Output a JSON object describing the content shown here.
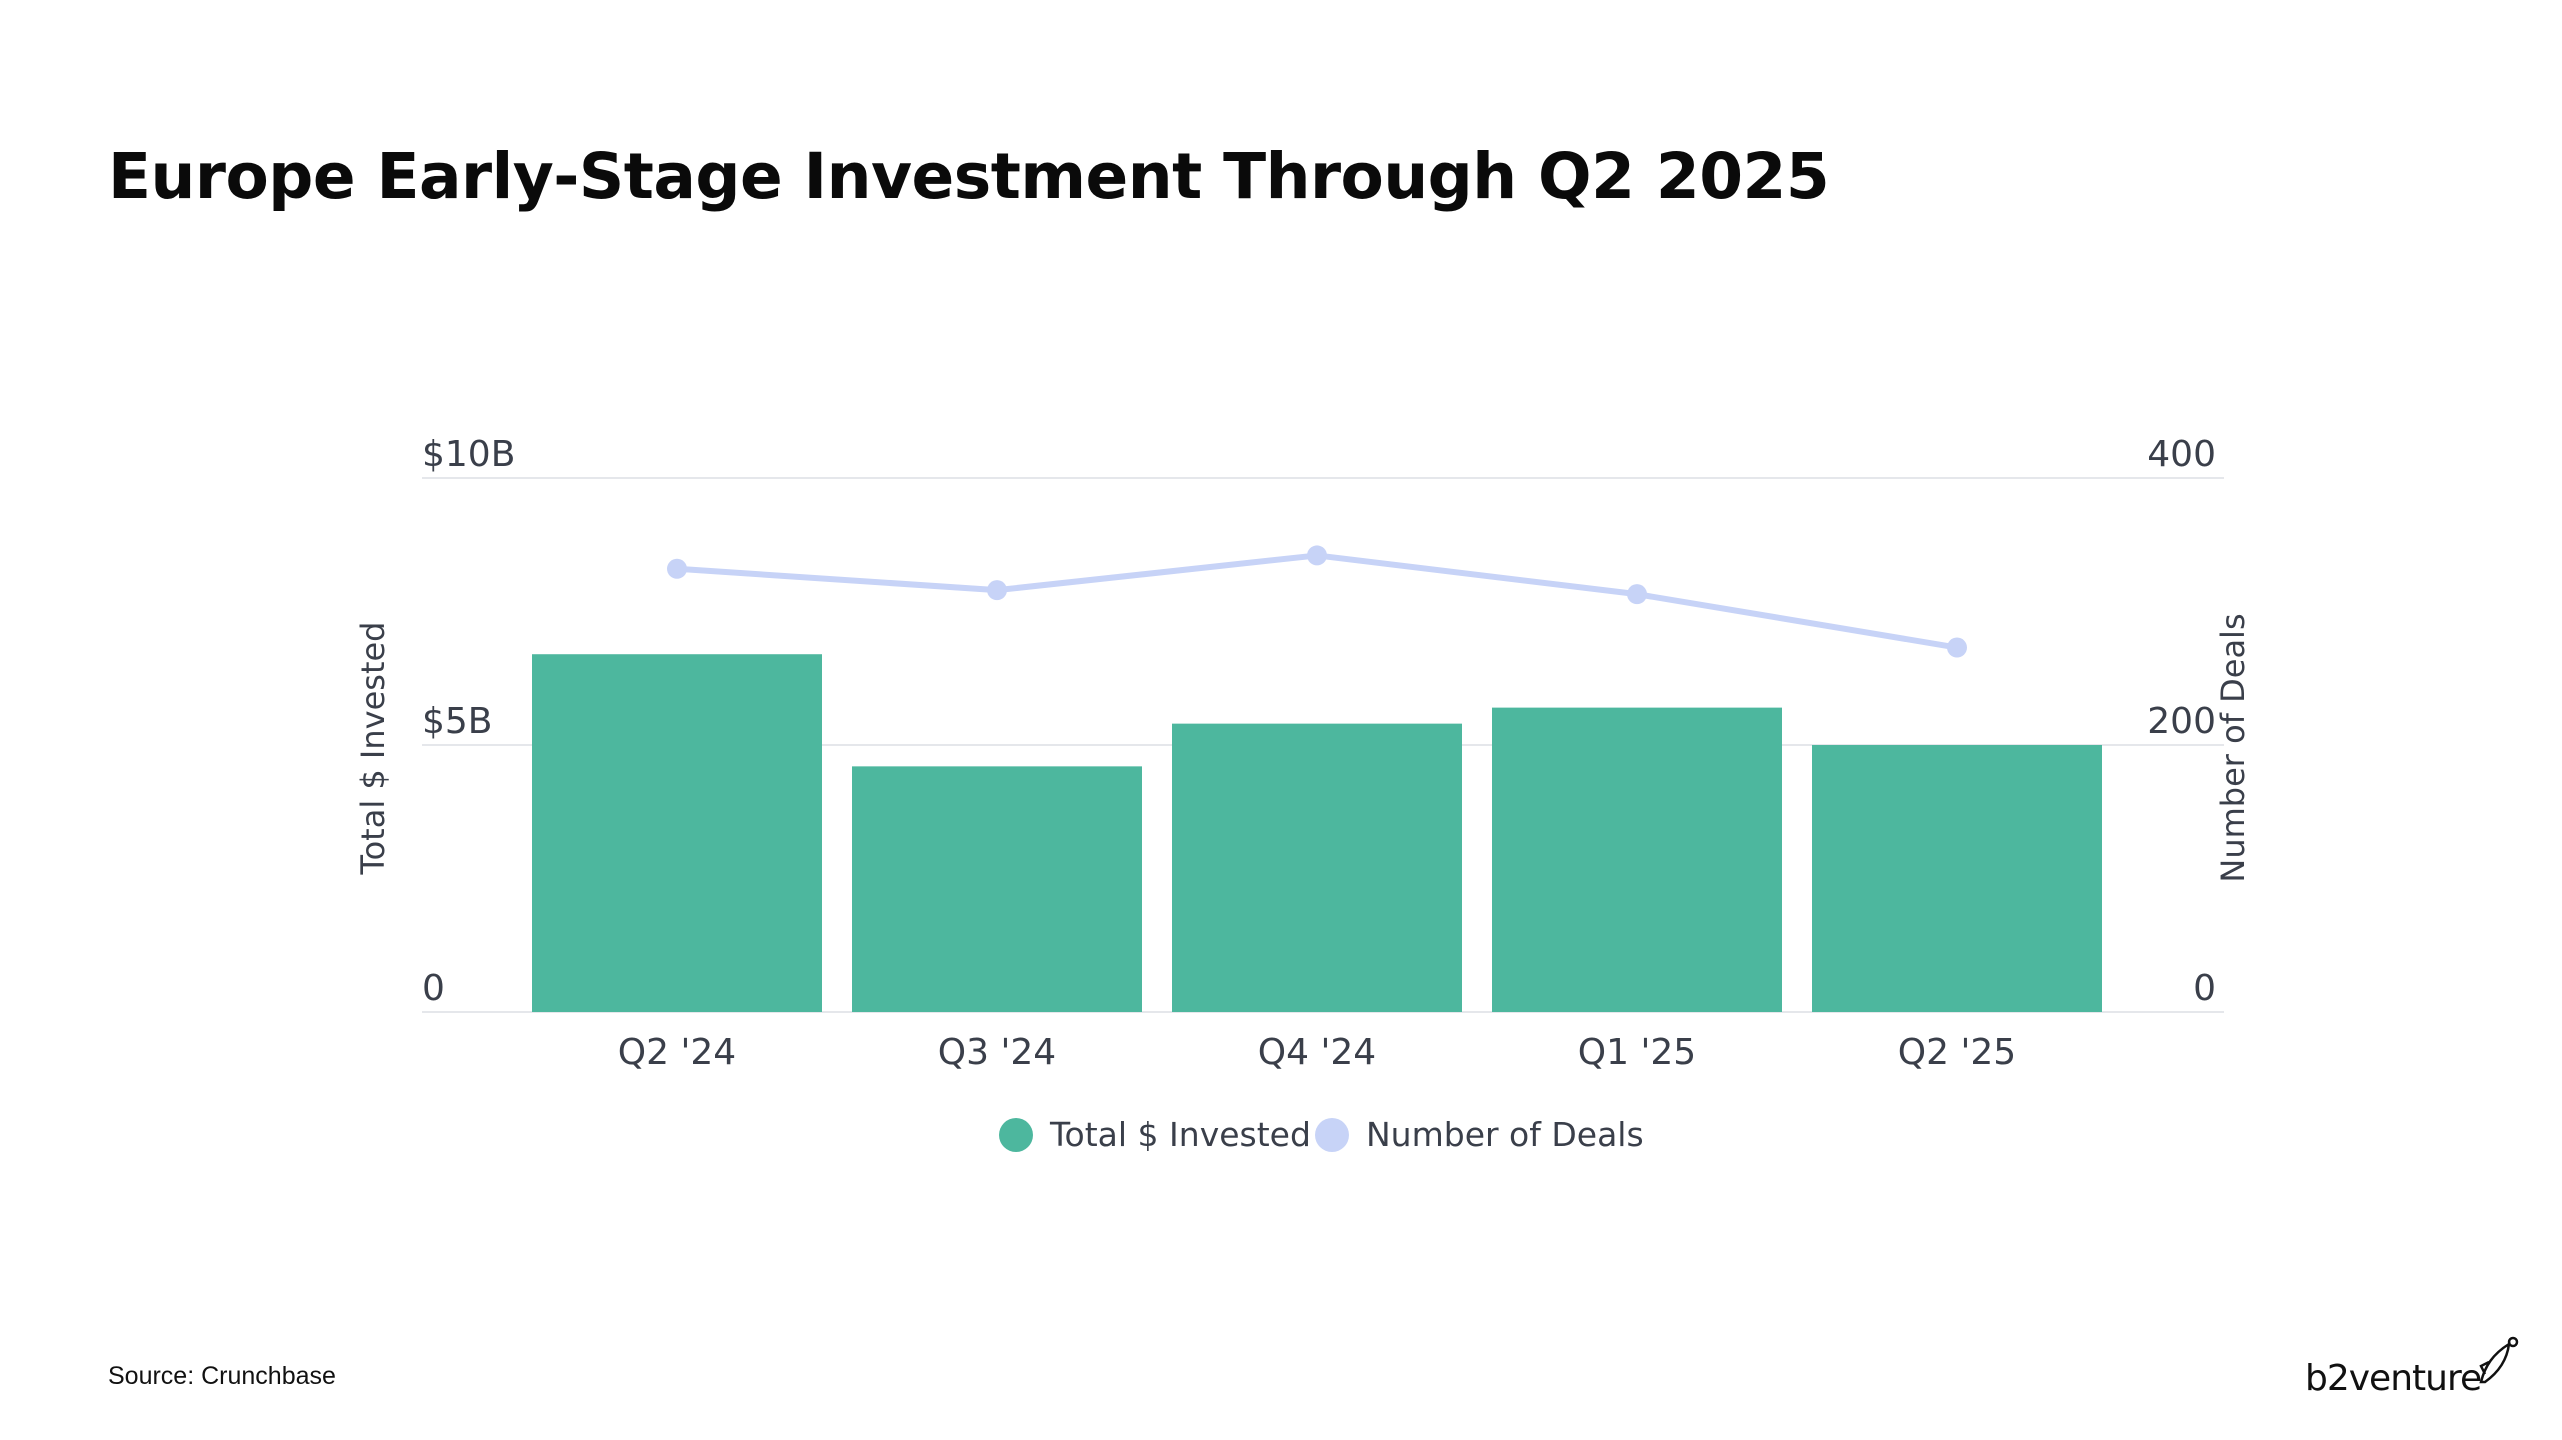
{
  "page": {
    "title": "Europe Early-Stage Investment Through Q2 2025",
    "source": "Source: Crunchbase",
    "brand": "b2venture"
  },
  "colors": {
    "bar": "#4db79e",
    "line": "#c7d3f7",
    "grid": "#e5e7eb",
    "text": "#3a3f4a"
  },
  "chart_data": {
    "type": "bar",
    "categories": [
      "Q2 '24",
      "Q3 '24",
      "Q4 '24",
      "Q1 '25",
      "Q2 '25"
    ],
    "series": [
      {
        "name": "Total $ Invested",
        "type": "bar",
        "axis": "left",
        "values": [
          6.7,
          4.6,
          5.4,
          5.7,
          5.0
        ]
      },
      {
        "name": "Number of Deals",
        "type": "line",
        "axis": "right",
        "values": [
          332,
          316,
          342,
          313,
          273
        ]
      }
    ],
    "y_left": {
      "label": "Total $ Invested",
      "ticks": [
        "0",
        "$5B",
        "$10B"
      ],
      "tick_values": [
        0,
        5,
        10
      ],
      "range": [
        0,
        10
      ]
    },
    "y_right": {
      "label": "Number of Deals",
      "ticks": [
        "0",
        "200",
        "400"
      ],
      "tick_values": [
        0,
        200,
        400
      ],
      "range": [
        0,
        400
      ]
    },
    "grid": true,
    "legend": {
      "position": "bottom",
      "items": [
        "Total $ Invested",
        "Number of Deals"
      ]
    }
  }
}
